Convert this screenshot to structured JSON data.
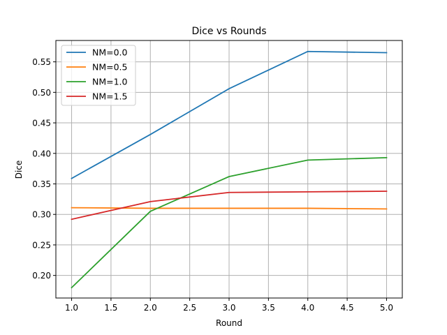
{
  "chart_data": {
    "type": "line",
    "title": "Dice vs Rounds",
    "xlabel": "Round",
    "ylabel": "Dice",
    "xlim": [
      0.8,
      5.2
    ],
    "ylim": [
      0.163,
      0.585
    ],
    "x": [
      1,
      2,
      3,
      4,
      5
    ],
    "xticks": [
      "1.0",
      "1.5",
      "2.0",
      "2.5",
      "3.0",
      "3.5",
      "4.0",
      "4.5",
      "5.0"
    ],
    "yticks": [
      "0.20",
      "0.25",
      "0.30",
      "0.35",
      "0.40",
      "0.45",
      "0.50",
      "0.55"
    ],
    "grid": true,
    "legend_position": "top-left",
    "series": [
      {
        "name": "NM=0.0",
        "color": "#1f77b4",
        "values": [
          0.359,
          0.431,
          0.506,
          0.567,
          0.565
        ]
      },
      {
        "name": "NM=0.5",
        "color": "#ff7f0e",
        "values": [
          0.311,
          0.31,
          0.31,
          0.31,
          0.309
        ]
      },
      {
        "name": "NM=1.0",
        "color": "#2ca02c",
        "values": [
          0.18,
          0.305,
          0.362,
          0.389,
          0.393
        ]
      },
      {
        "name": "NM=1.5",
        "color": "#d62728",
        "values": [
          0.292,
          0.321,
          0.336,
          0.337,
          0.338
        ]
      }
    ]
  }
}
